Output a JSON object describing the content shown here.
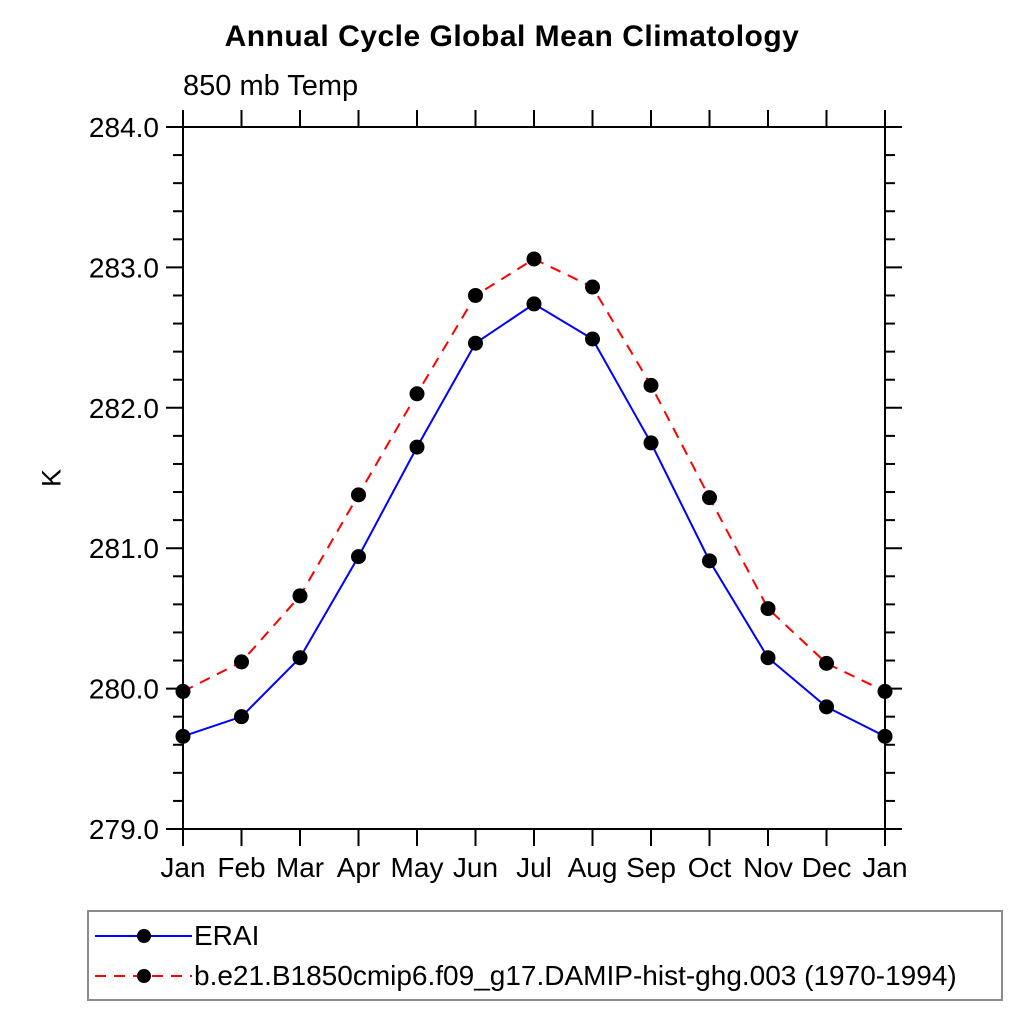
{
  "title": "Annual Cycle Global Mean Climatology",
  "subtitle": "850 mb Temp",
  "ylabel": "K",
  "legend": {
    "items": [
      {
        "label": "ERAI",
        "color": "#0000ff",
        "style": "solid",
        "marker": "black-dot"
      },
      {
        "label": "b.e21.B1850cmip6.f09_g17.DAMIP-hist-ghg.003 (1970-1994)",
        "color": "#ff0000",
        "style": "dashed",
        "marker": "black-dot"
      }
    ]
  },
  "chart_data": {
    "type": "line",
    "title": "Annual Cycle Global Mean Climatology",
    "subtitle": "850 mb Temp",
    "xlabel": "",
    "ylabel": "K",
    "categories": [
      "Jan",
      "Feb",
      "Mar",
      "Apr",
      "May",
      "Jun",
      "Jul",
      "Aug",
      "Sep",
      "Oct",
      "Nov",
      "Dec",
      "Jan"
    ],
    "series": [
      {
        "name": "ERAI",
        "color": "#0000ff",
        "style": "solid",
        "marker_color": "#000000",
        "values": [
          279.66,
          279.8,
          280.22,
          280.94,
          281.72,
          282.46,
          282.74,
          282.49,
          281.75,
          280.91,
          280.22,
          279.87,
          279.66
        ]
      },
      {
        "name": "b.e21.B1850cmip6.f09_g17.DAMIP-hist-ghg.003 (1970-1994)",
        "color": "#ff0000",
        "style": "dashed",
        "marker_color": "#000000",
        "values": [
          279.98,
          280.19,
          280.66,
          281.38,
          282.1,
          282.8,
          283.06,
          282.86,
          282.16,
          281.36,
          280.57,
          280.18,
          279.98
        ]
      }
    ],
    "ylim": [
      279.0,
      284.0
    ],
    "ytick_major": 1.0,
    "ytick_minor": 0.2,
    "ytick_format_decimals": 1,
    "grid": false,
    "legend_position": "bottom-left-box",
    "axis_color": "#000000",
    "background": "#ffffff"
  }
}
